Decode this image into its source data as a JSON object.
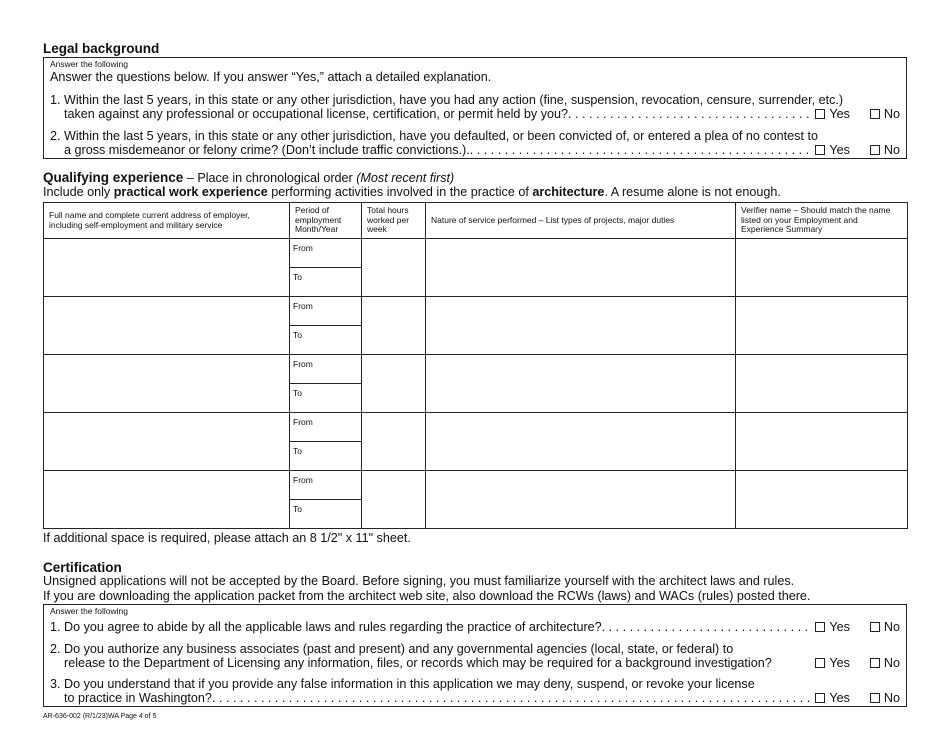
{
  "legal": {
    "heading": "Legal background",
    "box_label": "Answer the following",
    "intro": "Answer the questions below. If you answer “Yes,” attach a detailed explanation.",
    "q1_line1": "1. Within the last 5 years, in this state or any other jurisdiction, have you had any action (fine, suspension, revocation, censure, surrender, etc.)",
    "q1_line2": "taken against any professional or occupational license, certification, or permit held by you?",
    "q2_line1": "2. Within the last 5 years, in this state or any other jurisdiction, have you defaulted, or been convicted of, or entered a plea of no contest to",
    "q2_line2": "a gross misdemeanor or felony crime? (Don’t include traffic convictions.)."
  },
  "yes_label": "Yes",
  "no_label": "No",
  "experience": {
    "heading": "Qualifying experience",
    "heading_rest": " – Place in chronological order ",
    "heading_italic": "(Most recent first)",
    "line_a": "Include only ",
    "line_b": "practical work experience",
    "line_c": " performing activities involved in the practice of ",
    "line_d": "architecture",
    "line_e": ". A resume alone is not enough.",
    "columns": [
      "Full name and complete current address of employer, including self-employment and military service",
      "Period of employment Month/Year",
      "Total hours worked per week",
      "Nature of service performed – List types of projects, major duties",
      "Verifier name – Should match the name listed on your Employment and Experience Summary"
    ],
    "from_label": "From",
    "to_label": "To",
    "row_count": 5,
    "footnote": "If additional space is required, please attach an 8 1/2\" x 11\" sheet."
  },
  "certification": {
    "heading": "Certification",
    "line1": "Unsigned applications will not be accepted by the Board. Before signing, you must familiarize yourself with the architect laws and rules.",
    "line2": "If you are downloading the application packet from the architect web site, also download the RCWs (laws) and WACs (rules) posted there.",
    "box_label": "Answer the following",
    "q1": "1. Do you agree to abide by all the applicable laws and rules regarding the practice of architecture?",
    "q2_line1": "2. Do you authorize any business associates (past and present) and any governmental agencies (local, state, or federal) to",
    "q2_line2": "release to the Department of Licensing any information, files, or records which may be required for a background investigation?",
    "q3_line1": "3. Do you understand that if you provide any false information in this application we may deny, suspend, or revoke your license",
    "q3_line2": "to practice in Washington?"
  },
  "footer": "AR-636-002 (R/1/23)WA Page 4 of 5"
}
